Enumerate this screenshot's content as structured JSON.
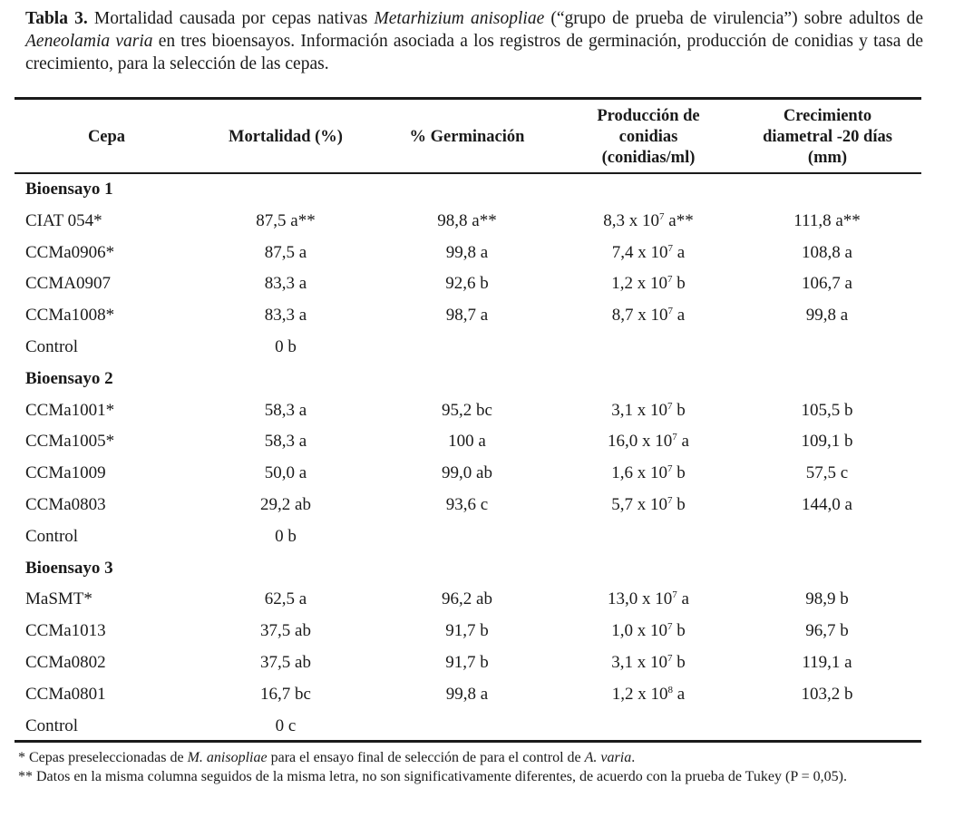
{
  "caption": {
    "label": "Tabla 3.",
    "t1": " Mortalidad causada por cepas nativas ",
    "i1": "Metarhizium anisopliae",
    "t2": " (“grupo de prueba de virulencia”) sobre adultos de ",
    "i2": "Aeneolamia varia",
    "t3": " en tres bioensayos. Información asociada a los registros de germinación, producción de conidias y tasa de crecimiento, para la selección de las cepas."
  },
  "headers": [
    "Cepa",
    "Mortalidad (%)",
    "% Germinación",
    "Producción de conidias (conidias/ml)",
    "Crecimiento diametral -20 días (mm)"
  ],
  "groups": [
    {
      "title": "Bioensayo 1",
      "rows": [
        {
          "cepa": "CIAT 054*",
          "mort": "87,5 a**",
          "germ": "98,8 a**",
          "prod": {
            "base": "8,3 x 10",
            "exp": "7",
            "suffix": " a**"
          },
          "crec": "111,8 a**"
        },
        {
          "cepa": "CCMa0906*",
          "mort": "87,5 a",
          "germ": "99,8 a",
          "prod": {
            "base": "7,4 x 10",
            "exp": "7",
            "suffix": " a"
          },
          "crec": "108,8 a"
        },
        {
          "cepa": "CCMA0907",
          "mort": "83,3 a",
          "germ": "92,6 b",
          "prod": {
            "base": "1,2 x 10",
            "exp": "7",
            "suffix": " b"
          },
          "crec": "106,7 a"
        },
        {
          "cepa": "CCMa1008*",
          "mort": "83,3 a",
          "germ": "98,7 a",
          "prod": {
            "base": "8,7 x 10",
            "exp": "7",
            "suffix": " a"
          },
          "crec": "99,8 a"
        },
        {
          "cepa": "Control",
          "mort": "0 b"
        }
      ]
    },
    {
      "title": "Bioensayo 2",
      "rows": [
        {
          "cepa": "CCMa1001*",
          "mort": "58,3 a",
          "germ": "95,2 bc",
          "prod": {
            "base": "3,1 x 10",
            "exp": "7",
            "suffix": " b"
          },
          "crec": "105,5 b"
        },
        {
          "cepa": "CCMa1005*",
          "mort": "58,3 a",
          "germ": "100 a",
          "prod": {
            "base": "16,0 x 10",
            "exp": "7",
            "suffix": " a"
          },
          "crec": "109,1 b"
        },
        {
          "cepa": "CCMa1009",
          "mort": "50,0 a",
          "germ": "99,0 ab",
          "prod": {
            "base": "1,6 x 10",
            "exp": "7",
            "suffix": " b"
          },
          "crec": "57,5 c"
        },
        {
          "cepa": "CCMa0803",
          "mort": "29,2 ab",
          "germ": "93,6 c",
          "prod": {
            "base": "5,7 x 10",
            "exp": "7",
            "suffix": " b"
          },
          "crec": "144,0 a"
        },
        {
          "cepa": "Control",
          "mort": "0 b"
        }
      ]
    },
    {
      "title": "Bioensayo 3",
      "rows": [
        {
          "cepa": "MaSMT*",
          "mort": "62,5 a",
          "germ": "96,2 ab",
          "prod": {
            "base": "13,0 x 10",
            "exp": "7",
            "suffix": " a"
          },
          "crec": "98,9 b"
        },
        {
          "cepa": "CCMa1013",
          "mort": "37,5 ab",
          "germ": "91,7 b",
          "prod": {
            "base": "1,0 x 10",
            "exp": "7",
            "suffix": " b"
          },
          "crec": "96,7 b"
        },
        {
          "cepa": "CCMa0802",
          "mort": "37,5 ab",
          "germ": "91,7 b",
          "prod": {
            "base": "3,1 x 10",
            "exp": "7",
            "suffix": " b"
          },
          "crec": "119,1 a"
        },
        {
          "cepa": "CCMa0801",
          "mort": "16,7 bc",
          "germ": "99,8 a",
          "prod": {
            "base": "1,2 x 10",
            "exp": "8",
            "suffix": " a"
          },
          "crec": "103,2 b"
        },
        {
          "cepa": "Control",
          "mort": "0 c"
        }
      ]
    }
  ],
  "footnotes": {
    "f1a": "* Cepas preseleccionadas de ",
    "f1i": "M. anisopliae",
    "f1b": " para el ensayo final de selección de para el control de ",
    "f1i2": "A. varia",
    "f1c": ".",
    "f2": "** Datos en la misma columna seguidos de la misma letra, no son significativamente diferentes, de acuerdo con la prueba de Tukey (P = 0,05)."
  }
}
